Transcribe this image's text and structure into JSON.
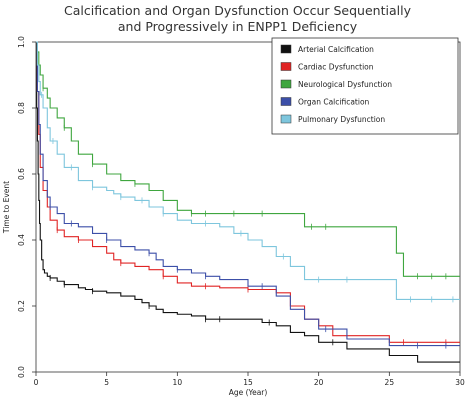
{
  "chart_data": {
    "type": "line",
    "title_line1": "Calcification and Organ Dysfunction Occur Sequentially",
    "title_line2": "and Progressively in ENPP1 Deficiency",
    "xlabel": "Age (Year)",
    "ylabel": "Time to Event",
    "xlim": [
      0,
      30
    ],
    "ylim": [
      0,
      1.0
    ],
    "xticks": [
      0,
      5,
      10,
      15,
      20,
      25,
      30
    ],
    "yticks": [
      "0.0",
      "0.2",
      "0.4",
      "0.6",
      "0.8",
      "1.0"
    ],
    "legend_position": "top-right",
    "grid": false,
    "step": true,
    "series": [
      {
        "name": "Arterial Calcification",
        "color": "#111111",
        "x": [
          0,
          0.05,
          0.1,
          0.15,
          0.2,
          0.25,
          0.3,
          0.4,
          0.5,
          0.6,
          0.8,
          1,
          1.5,
          2,
          3,
          3.5,
          4,
          5,
          6,
          7,
          7.5,
          8,
          8.5,
          9,
          10,
          11,
          12,
          16,
          17,
          18,
          19,
          20,
          22,
          25,
          27,
          30
        ],
        "y": [
          1.0,
          0.8,
          0.7,
          0.6,
          0.52,
          0.45,
          0.4,
          0.34,
          0.31,
          0.3,
          0.29,
          0.285,
          0.275,
          0.265,
          0.255,
          0.25,
          0.245,
          0.24,
          0.23,
          0.22,
          0.21,
          0.2,
          0.19,
          0.18,
          0.175,
          0.17,
          0.16,
          0.15,
          0.14,
          0.12,
          0.11,
          0.09,
          0.07,
          0.05,
          0.03,
          0.03
        ],
        "censor_x": [
          1,
          2,
          4,
          8,
          12,
          13,
          16.5,
          21
        ]
      },
      {
        "name": "Cardiac Dysfunction",
        "color": "#e02424",
        "x": [
          0,
          0.1,
          0.2,
          0.3,
          0.5,
          0.8,
          1,
          1.5,
          2,
          3,
          4,
          5,
          5.5,
          6,
          7,
          8,
          9,
          10,
          11,
          13,
          15,
          17,
          18,
          19,
          20,
          21,
          25,
          30
        ],
        "y": [
          1.0,
          0.85,
          0.72,
          0.62,
          0.55,
          0.5,
          0.46,
          0.43,
          0.41,
          0.4,
          0.38,
          0.36,
          0.34,
          0.33,
          0.32,
          0.31,
          0.29,
          0.27,
          0.26,
          0.255,
          0.25,
          0.24,
          0.2,
          0.16,
          0.14,
          0.11,
          0.09,
          0.09
        ],
        "censor_x": [
          1.5,
          3,
          6,
          9,
          12,
          15,
          26,
          29
        ]
      },
      {
        "name": "Neurological Dysfunction",
        "color": "#3fa63f",
        "x": [
          0,
          0.1,
          0.2,
          0.3,
          0.5,
          0.8,
          1,
          1.5,
          2,
          2.5,
          3,
          4,
          5,
          6,
          7,
          8,
          9,
          10,
          11,
          18.5,
          19,
          21,
          25.5,
          26,
          30
        ],
        "y": [
          1.0,
          0.97,
          0.93,
          0.9,
          0.86,
          0.83,
          0.8,
          0.77,
          0.74,
          0.7,
          0.66,
          0.63,
          0.6,
          0.58,
          0.57,
          0.55,
          0.52,
          0.49,
          0.48,
          0.48,
          0.44,
          0.44,
          0.36,
          0.29,
          0.29
        ],
        "censor_x": [
          0.5,
          2,
          4,
          7,
          11,
          12,
          14,
          16,
          19.5,
          20.5,
          27,
          28,
          29
        ]
      },
      {
        "name": "Organ Calcification",
        "color": "#3c4fa8",
        "x": [
          0,
          0.1,
          0.2,
          0.3,
          0.5,
          0.8,
          1,
          1.5,
          2,
          3,
          4,
          5,
          6,
          7,
          8,
          8.5,
          9,
          10,
          11,
          12,
          13,
          15,
          17,
          18,
          19,
          20,
          22,
          25,
          30
        ],
        "y": [
          1.0,
          0.85,
          0.75,
          0.66,
          0.58,
          0.53,
          0.5,
          0.48,
          0.45,
          0.44,
          0.42,
          0.4,
          0.38,
          0.37,
          0.36,
          0.34,
          0.32,
          0.31,
          0.3,
          0.29,
          0.28,
          0.26,
          0.23,
          0.19,
          0.16,
          0.13,
          0.1,
          0.08,
          0.08
        ],
        "censor_x": [
          1,
          2.5,
          5,
          8,
          10,
          12,
          16,
          20.5,
          27,
          29
        ]
      },
      {
        "name": "Pulmonary Dysfunction",
        "color": "#7ec6dd",
        "x": [
          0,
          0.1,
          0.2,
          0.3,
          0.5,
          0.8,
          1,
          1.5,
          2,
          3,
          4,
          5,
          5.5,
          6,
          7,
          8,
          9,
          10,
          11,
          13,
          14,
          15,
          16,
          17,
          18,
          19,
          25.5,
          30
        ],
        "y": [
          1.0,
          0.93,
          0.88,
          0.84,
          0.8,
          0.74,
          0.7,
          0.66,
          0.62,
          0.58,
          0.56,
          0.55,
          0.54,
          0.53,
          0.52,
          0.5,
          0.48,
          0.46,
          0.45,
          0.44,
          0.42,
          0.4,
          0.38,
          0.35,
          0.32,
          0.28,
          0.22,
          0.22
        ],
        "censor_x": [
          0.4,
          1.2,
          2.5,
          4,
          6,
          7.5,
          9,
          12,
          14.5,
          17.5,
          20,
          22,
          26.5,
          28,
          29.5
        ]
      }
    ]
  }
}
